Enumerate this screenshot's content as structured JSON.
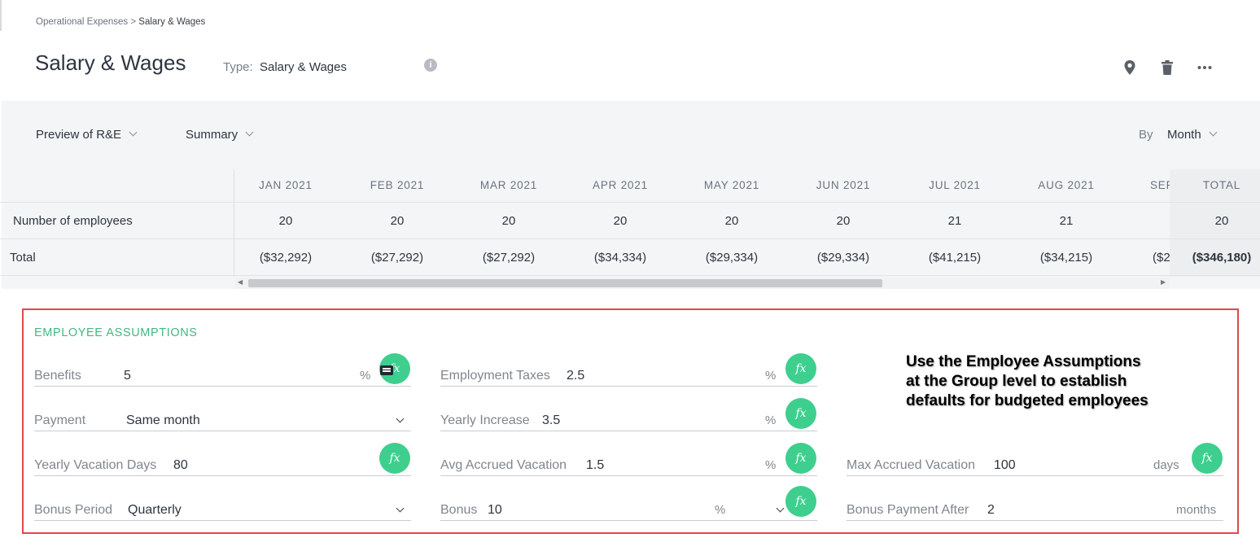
{
  "breadcrumb": {
    "parent": "Operational Expenses",
    "separator": ">",
    "current": "Salary & Wages"
  },
  "header": {
    "title": "Salary & Wages",
    "type_label": "Type:",
    "type_value": "Salary & Wages",
    "info_glyph": "i",
    "icons": [
      "location-pin-icon",
      "trash-icon",
      "more-icon"
    ]
  },
  "toolbar": {
    "preview_label": "Preview of R&E",
    "summary_label": "Summary",
    "by_label": "By",
    "by_value": "Month"
  },
  "table": {
    "months": [
      "JAN 2021",
      "FEB 2021",
      "MAR 2021",
      "APR 2021",
      "MAY 2021",
      "JUN 2021",
      "JUL 2021",
      "AUG 2021",
      "SEP"
    ],
    "total_header": "TOTAL",
    "rows": [
      {
        "label": "Number of employees",
        "values": [
          "20",
          "20",
          "20",
          "20",
          "20",
          "20",
          "21",
          "21",
          ""
        ],
        "total": "20"
      },
      {
        "label": "Total",
        "values": [
          "($32,292)",
          "($27,292)",
          "($27,292)",
          "($34,334)",
          "($29,334)",
          "($29,334)",
          "($41,215)",
          "($34,215)",
          "($2"
        ],
        "total": "($346,180)"
      }
    ]
  },
  "assumptions": {
    "title": "EMPLOYEE ASSUMPTIONS",
    "fx_glyph": "fx",
    "benefits": {
      "label": "Benefits",
      "value": "5",
      "unit": "%"
    },
    "employment_taxes": {
      "label": "Employment Taxes",
      "value": "2.5",
      "unit": "%"
    },
    "payment": {
      "label": "Payment",
      "value": "Same month"
    },
    "yearly_increase": {
      "label": "Yearly Increase",
      "value": "3.5",
      "unit": "%"
    },
    "yearly_vacation_days": {
      "label": "Yearly Vacation Days",
      "value": "80"
    },
    "avg_accrued_vacation": {
      "label": "Avg Accrued Vacation",
      "value": "1.5",
      "unit": "%"
    },
    "max_accrued_vacation": {
      "label": "Max Accrued Vacation",
      "value": "100",
      "unit": "days"
    },
    "bonus_period": {
      "label": "Bonus Period",
      "value": "Quarterly"
    },
    "bonus": {
      "label": "Bonus",
      "value": "10",
      "unit": "%"
    },
    "bonus_payment_after": {
      "label": "Bonus Payment After",
      "value": "2",
      "unit": "months"
    }
  },
  "callout": {
    "line1": "Use the Employee Assumptions",
    "line2": "at the Group level to establish",
    "line3": "defaults for budgeted employees"
  },
  "colors": {
    "accent_green": "#3ecf8e",
    "highlight_red": "#e0484d",
    "section_title": "#41b883"
  }
}
